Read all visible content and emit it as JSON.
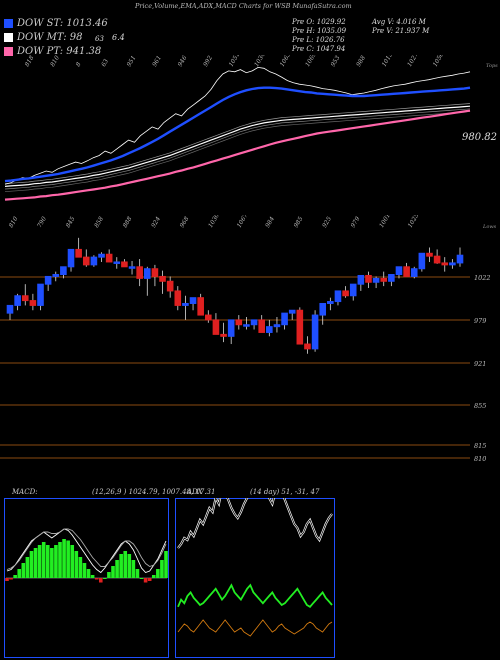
{
  "header": {
    "title": "Price,Volume,EMA,ADX,MACD Charts for WSB MunafaSutra.com"
  },
  "legend": [
    {
      "label": "DOW ST: 1013.46",
      "color": "#1f4fff"
    },
    {
      "label": "DOW MT: 98",
      "color": "#ffffff"
    },
    {
      "label": "DOW PT: 941.38",
      "color": "#ff66aa"
    }
  ],
  "stats": {
    "col1": [
      "Pre O: 1029.92",
      "Pre H: 1035.09",
      "Pre L: 1026.76",
      "Pre C: 1047.94"
    ],
    "col2": [
      "Avg V: 4.016 M",
      "Pre V: 21.937 M"
    ]
  },
  "top_extras": [
    "63",
    "6.4"
  ],
  "ema_top_labels": [
    "818",
    "810",
    "8",
    "63",
    "951",
    "961",
    "946",
    "992",
    "1051",
    "1034",
    "1063",
    "1069",
    "953",
    "988",
    "1015",
    "1027",
    "1050"
  ],
  "ema_right_label": "Tops",
  "ema_value_label": "980.82",
  "price_top_labels": [
    "810",
    "790",
    "845",
    "858",
    "888",
    "924",
    "968",
    "1030",
    "1067",
    "984",
    "985",
    "925",
    "979",
    "1001",
    "1025"
  ],
  "price_right_label": "Lows",
  "price_levels": [
    "1022",
    "979",
    "921",
    "855",
    "815",
    "810"
  ],
  "macd_label": "MACD:",
  "macd_values": "(12,26,9 ) 1024.79, 1007.48, 17.31",
  "adx_label": "ADX",
  "adx_values": "(14 day) 51, -31, 47",
  "colors": {
    "ema_blue": "#1f4fff",
    "ema_pink": "#ff66aa",
    "up_candle": "#1f4fff",
    "down_candle": "#e02020",
    "grid_line": "#8a4a10",
    "macd_hist": "#22ee22",
    "adx_green": "#22ee22",
    "adx_orange": "#d27a10",
    "panel_border": "#1f4fff"
  },
  "chart_data": [
    {
      "type": "line",
      "title": "EMA",
      "x": [
        1,
        2,
        3,
        4,
        5,
        6,
        7,
        8,
        9,
        10,
        11,
        12,
        13,
        14,
        15,
        16,
        17,
        18,
        19,
        20,
        21,
        22,
        23,
        24,
        25,
        26,
        27,
        28,
        29,
        30,
        31,
        32,
        33,
        34,
        35,
        36,
        37,
        38,
        39,
        40,
        41,
        42,
        43,
        44,
        45,
        46,
        47,
        48,
        49,
        50,
        51,
        52,
        53,
        54,
        55,
        56,
        57,
        58,
        59,
        60,
        61,
        62,
        63,
        64,
        65,
        66,
        67,
        68,
        69,
        70,
        71,
        72,
        73,
        74,
        75,
        76,
        77,
        78,
        79,
        80
      ],
      "series": [
        {
          "name": "Price",
          "values": [
            805,
            808,
            815,
            820,
            818,
            825,
            830,
            835,
            832,
            840,
            845,
            850,
            855,
            852,
            858,
            865,
            870,
            880,
            875,
            885,
            895,
            905,
            900,
            915,
            925,
            935,
            930,
            945,
            955,
            965,
            960,
            975,
            985,
            995,
            1005,
            1020,
            1040,
            1055,
            1062,
            1060,
            1065,
            1058,
            1062,
            1070,
            1068,
            1060,
            1055,
            1048,
            1040,
            1035,
            1032,
            1030,
            1028,
            1025,
            1022,
            1020,
            1018,
            1015,
            1012,
            1008,
            1010,
            1012,
            1015,
            1018,
            1022,
            1025,
            1028,
            1030,
            1032,
            1035,
            1038,
            1040,
            1042,
            1045,
            1048,
            1050,
            1052,
            1055,
            1057,
            1060
          ]
        },
        {
          "name": "DOW ST",
          "values": [
            812,
            813,
            815,
            817,
            818,
            820,
            822,
            824,
            826,
            828,
            831,
            834,
            837,
            840,
            843,
            847,
            851,
            855,
            859,
            864,
            869,
            875,
            881,
            887,
            894,
            901,
            908,
            916,
            924,
            932,
            940,
            948,
            956,
            964,
            972,
            980,
            988,
            996,
            1003,
            1009,
            1014,
            1018,
            1021,
            1023,
            1024,
            1024,
            1023,
            1022,
            1020,
            1018,
            1016,
            1014,
            1013,
            1011,
            1010,
            1009,
            1008,
            1007,
            1006,
            1005,
            1005,
            1005,
            1006,
            1007,
            1008,
            1009,
            1010,
            1011,
            1012,
            1013,
            1014,
            1015,
            1016,
            1017,
            1018,
            1019,
            1020,
            1021,
            1022,
            1024
          ]
        },
        {
          "name": "DOW MT",
          "values": [
            800,
            801,
            802,
            803,
            804,
            806,
            807,
            809,
            810,
            812,
            814,
            816,
            818,
            820,
            822,
            825,
            827,
            830,
            833,
            836,
            839,
            842,
            846,
            850,
            854,
            858,
            862,
            866,
            870,
            875,
            880,
            885,
            890,
            895,
            900,
            905,
            910,
            915,
            920,
            925,
            930,
            934,
            938,
            941,
            944,
            946,
            948,
            950,
            951,
            952,
            953,
            954,
            955,
            956,
            957,
            958,
            959,
            960,
            961,
            962,
            963,
            964,
            965,
            966,
            967,
            968,
            969,
            970,
            971,
            972,
            973,
            974,
            975,
            976,
            977,
            978,
            979,
            980,
            981,
            982
          ]
        },
        {
          "name": "DOW PT",
          "values": [
            770,
            771,
            772,
            773,
            774,
            775,
            777,
            778,
            780,
            781,
            783,
            785,
            787,
            789,
            791,
            793,
            795,
            797,
            800,
            802,
            805,
            808,
            811,
            814,
            817,
            820,
            823,
            826,
            829,
            833,
            836,
            840,
            843,
            847,
            851,
            855,
            859,
            863,
            867,
            871,
            875,
            879,
            883,
            887,
            891,
            895,
            899,
            902,
            905,
            908,
            911,
            914,
            917,
            920,
            922,
            924,
            926,
            928,
            930,
            932,
            934,
            936,
            938,
            940,
            942,
            944,
            946,
            948,
            950,
            952,
            954,
            956,
            958,
            960,
            962,
            964,
            966,
            968,
            970,
            972
          ]
        }
      ]
    },
    {
      "type": "bar",
      "title": "Candlestick",
      "x": [
        1,
        2,
        3,
        4,
        5,
        6,
        7,
        8,
        9,
        10,
        11,
        12,
        13,
        14,
        15,
        16,
        17,
        18,
        19,
        20,
        21,
        22,
        23,
        24,
        25,
        26,
        27,
        28,
        29,
        30,
        31,
        32,
        33,
        34,
        35,
        36,
        37,
        38,
        39,
        40,
        41,
        42,
        43,
        44,
        45,
        46,
        47,
        48,
        49,
        50,
        51,
        52,
        53,
        54,
        55,
        56,
        57,
        58,
        59,
        60
      ],
      "candles": {
        "open": [
          992,
          1000,
          1010,
          1005,
          1000,
          1022,
          1030,
          1032,
          1040,
          1058,
          1050,
          1042,
          1050,
          1053,
          1045,
          1045,
          1040,
          1040,
          1028,
          1038,
          1030,
          1025,
          1015,
          1000,
          1002,
          1008,
          990,
          985,
          970,
          968,
          985,
          980,
          980,
          985,
          972,
          978,
          980,
          992,
          995,
          960,
          955,
          990,
          1002,
          1004,
          1015,
          1010,
          1022,
          1031,
          1024,
          1028,
          1025,
          1032,
          1040,
          1030,
          1038,
          1054,
          1051,
          1044,
          1042,
          1044
        ],
        "high": [
          998,
          1012,
          1022,
          1012,
          1008,
          1030,
          1035,
          1040,
          1052,
          1070,
          1058,
          1052,
          1055,
          1058,
          1050,
          1048,
          1046,
          1048,
          1040,
          1042,
          1036,
          1030,
          1020,
          1010,
          1008,
          1012,
          995,
          992,
          982,
          975,
          990,
          988,
          985,
          990,
          985,
          988,
          990,
          995,
          998,
          968,
          995,
          1000,
          1008,
          1012,
          1020,
          1018,
          1030,
          1035,
          1030,
          1035,
          1030,
          1040,
          1044,
          1040,
          1048,
          1060,
          1058,
          1050,
          1048,
          1060
        ],
        "low": [
          985,
          995,
          1000,
          995,
          995,
          1015,
          1025,
          1028,
          1035,
          1050,
          1040,
          1040,
          1045,
          1045,
          1038,
          1040,
          1032,
          1020,
          1010,
          1020,
          1012,
          1008,
          995,
          985,
          995,
          998,
          982,
          980,
          962,
          960,
          975,
          975,
          975,
          978,
          968,
          972,
          975,
          985,
          985,
          950,
          952,
          980,
          995,
          1000,
          1008,
          1005,
          1015,
          1018,
          1018,
          1020,
          1020,
          1028,
          1030,
          1028,
          1035,
          1045,
          1043,
          1035,
          1038,
          1040
        ],
        "close": [
          1000,
          1010,
          1005,
          1000,
          1022,
          1030,
          1032,
          1040,
          1058,
          1050,
          1042,
          1050,
          1053,
          1045,
          1045,
          1040,
          1040,
          1028,
          1038,
          1030,
          1025,
          1015,
          1000,
          1002,
          1008,
          990,
          985,
          970,
          968,
          985,
          980,
          980,
          985,
          972,
          978,
          980,
          992,
          995,
          960,
          955,
          990,
          1002,
          1004,
          1015,
          1010,
          1022,
          1031,
          1024,
          1028,
          1025,
          1032,
          1040,
          1030,
          1038,
          1054,
          1051,
          1044,
          1042,
          1044,
          1052
        ]
      }
    },
    {
      "type": "line",
      "title": "MACD",
      "x": [
        1,
        2,
        3,
        4,
        5,
        6,
        7,
        8,
        9,
        10,
        11,
        12,
        13,
        14,
        15,
        16,
        17,
        18,
        19,
        20,
        21,
        22,
        23,
        24,
        25,
        26,
        27,
        28,
        29,
        30,
        31,
        32,
        33,
        34,
        35,
        36,
        37,
        38,
        39,
        40
      ],
      "series": [
        {
          "name": "MACD",
          "values": [
            -2,
            -1,
            2,
            6,
            10,
            14,
            18,
            20,
            22,
            24,
            22,
            20,
            22,
            24,
            26,
            25,
            22,
            18,
            14,
            10,
            6,
            2,
            -1,
            -3,
            0,
            4,
            8,
            12,
            16,
            18,
            16,
            12,
            6,
            0,
            -3,
            -2,
            2,
            6,
            12,
            18
          ]
        },
        {
          "name": "Signal",
          "values": [
            -3,
            -2,
            0,
            3,
            7,
            11,
            15,
            18,
            20,
            22,
            22,
            21,
            21,
            22,
            24,
            24,
            23,
            20,
            17,
            13,
            9,
            5,
            2,
            -1,
            -1,
            2,
            5,
            9,
            13,
            16,
            16,
            14,
            10,
            5,
            1,
            -1,
            0,
            3,
            8,
            14
          ]
        }
      ]
    },
    {
      "type": "line",
      "title": "ADX",
      "x": [
        1,
        2,
        3,
        4,
        5,
        6,
        7,
        8,
        9,
        10,
        11,
        12,
        13,
        14,
        15,
        16,
        17,
        18,
        19,
        20,
        21,
        22,
        23,
        24,
        25,
        26,
        27,
        28,
        29,
        30,
        31,
        32,
        33,
        34,
        35,
        36,
        37,
        38,
        39,
        40,
        41,
        42,
        43,
        44,
        45,
        46,
        47,
        48,
        49,
        50
      ],
      "series": [
        {
          "name": "+DI",
          "values": [
            30,
            32,
            35,
            34,
            38,
            36,
            40,
            44,
            42,
            46,
            50,
            48,
            55,
            52,
            60,
            58,
            54,
            50,
            47,
            45,
            48,
            52,
            55,
            62,
            68,
            72,
            70,
            66,
            60,
            55,
            52,
            58,
            62,
            58,
            54,
            50,
            46,
            42,
            40,
            36,
            38,
            42,
            44,
            40,
            36,
            34,
            38,
            42,
            45,
            47
          ]
        },
        {
          "name": "-DI",
          "values": [
            8,
            10,
            12,
            11,
            9,
            8,
            10,
            12,
            14,
            12,
            10,
            9,
            8,
            10,
            12,
            14,
            12,
            10,
            8,
            9,
            10,
            8,
            7,
            6,
            8,
            10,
            12,
            14,
            12,
            10,
            8,
            9,
            11,
            12,
            10,
            9,
            8,
            7,
            8,
            9,
            10,
            12,
            13,
            12,
            10,
            9,
            8,
            10,
            12,
            13
          ]
        },
        {
          "name": "DX",
          "values": [
            14,
            18,
            16,
            20,
            22,
            19,
            17,
            15,
            16,
            18,
            20,
            22,
            24,
            21,
            18,
            20,
            23,
            26,
            22,
            20,
            18,
            21,
            24,
            26,
            22,
            20,
            18,
            16,
            18,
            20,
            22,
            19,
            17,
            15,
            16,
            18,
            20,
            22,
            24,
            21,
            18,
            15,
            14,
            16,
            18,
            20,
            22,
            19,
            17,
            15
          ]
        }
      ]
    }
  ]
}
